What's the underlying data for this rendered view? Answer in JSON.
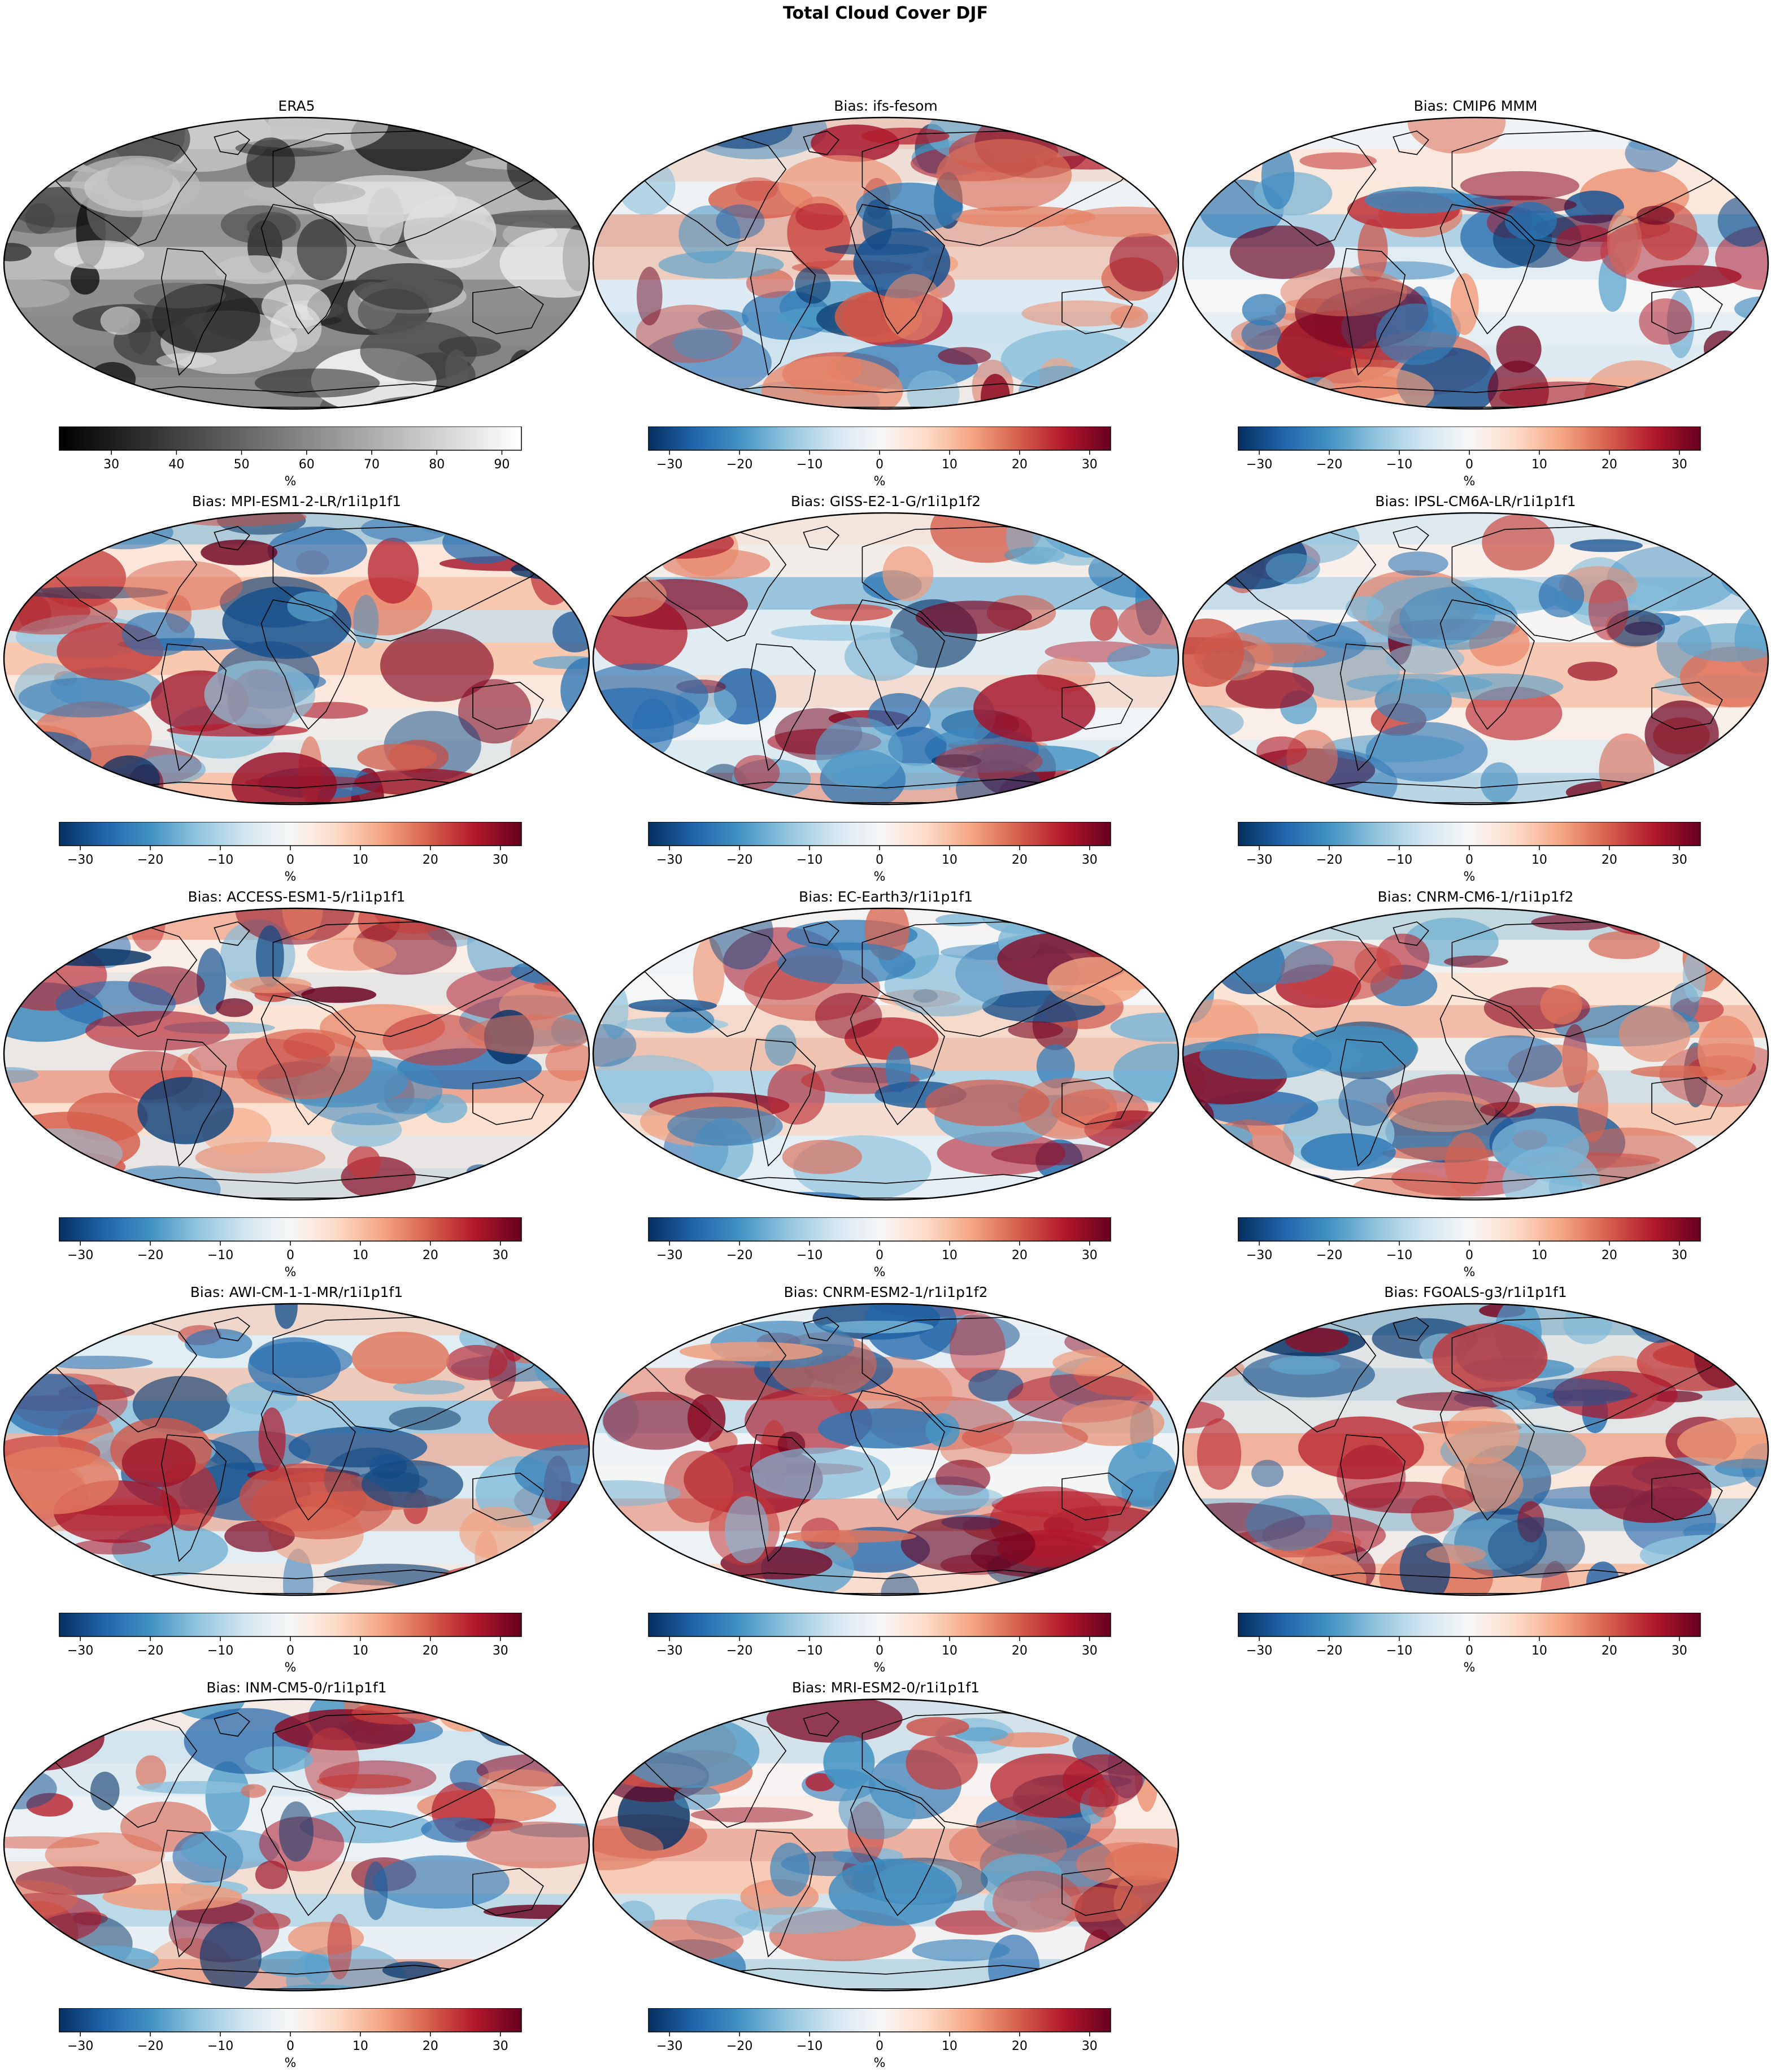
{
  "figure": {
    "title": "Total Cloud Cover DJF"
  },
  "chart_data": {
    "type": "heatmap",
    "projection": "Robinson",
    "season": "DJF",
    "variable": "Total Cloud Cover",
    "reference_colormap": "Greys_r",
    "bias_colormap": "RdBu_r",
    "colors": {
      "bias_low": "#053061",
      "bias_mid": "#f7f7f7",
      "bias_high": "#67001f",
      "ref_low": "#000000",
      "ref_high": "#ffffff",
      "coastline": "#000000"
    },
    "panels": [
      {
        "title": "ERA5",
        "kind": "reference",
        "colorbar": {
          "label": "%",
          "range": [
            22,
            93
          ],
          "ticks": [
            30,
            40,
            50,
            60,
            70,
            80,
            90
          ]
        }
      },
      {
        "title": "Bias: ifs-fesom",
        "kind": "bias",
        "colorbar": {
          "label": "%",
          "range": [
            -33,
            33
          ],
          "ticks": [
            -30,
            -20,
            -10,
            0,
            10,
            20,
            30
          ]
        }
      },
      {
        "title": "Bias: CMIP6 MMM",
        "kind": "bias",
        "colorbar": {
          "label": "%",
          "range": [
            -33,
            33
          ],
          "ticks": [
            -30,
            -20,
            -10,
            0,
            10,
            20,
            30
          ]
        }
      },
      {
        "title": "Bias: MPI-ESM1-2-LR/r1i1p1f1",
        "kind": "bias",
        "colorbar": {
          "label": "%",
          "range": [
            -33,
            33
          ],
          "ticks": [
            -30,
            -20,
            -10,
            0,
            10,
            20,
            30
          ]
        }
      },
      {
        "title": "Bias: GISS-E2-1-G/r1i1p1f2",
        "kind": "bias",
        "colorbar": {
          "label": "%",
          "range": [
            -33,
            33
          ],
          "ticks": [
            -30,
            -20,
            -10,
            0,
            10,
            20,
            30
          ]
        }
      },
      {
        "title": "Bias: IPSL-CM6A-LR/r1i1p1f1",
        "kind": "bias",
        "colorbar": {
          "label": "%",
          "range": [
            -33,
            33
          ],
          "ticks": [
            -30,
            -20,
            -10,
            0,
            10,
            20,
            30
          ]
        }
      },
      {
        "title": "Bias: ACCESS-ESM1-5/r1i1p1f1",
        "kind": "bias",
        "colorbar": {
          "label": "%",
          "range": [
            -33,
            33
          ],
          "ticks": [
            -30,
            -20,
            -10,
            0,
            10,
            20,
            30
          ]
        }
      },
      {
        "title": "Bias: EC-Earth3/r1i1p1f1",
        "kind": "bias",
        "colorbar": {
          "label": "%",
          "range": [
            -33,
            33
          ],
          "ticks": [
            -30,
            -20,
            -10,
            0,
            10,
            20,
            30
          ]
        }
      },
      {
        "title": "Bias: CNRM-CM6-1/r1i1p1f2",
        "kind": "bias",
        "colorbar": {
          "label": "%",
          "range": [
            -33,
            33
          ],
          "ticks": [
            -30,
            -20,
            -10,
            0,
            10,
            20,
            30
          ]
        }
      },
      {
        "title": "Bias: AWI-CM-1-1-MR/r1i1p1f1",
        "kind": "bias",
        "colorbar": {
          "label": "%",
          "range": [
            -33,
            33
          ],
          "ticks": [
            -30,
            -20,
            -10,
            0,
            10,
            20,
            30
          ]
        }
      },
      {
        "title": "Bias: CNRM-ESM2-1/r1i1p1f2",
        "kind": "bias",
        "colorbar": {
          "label": "%",
          "range": [
            -33,
            33
          ],
          "ticks": [
            -30,
            -20,
            -10,
            0,
            10,
            20,
            30
          ]
        }
      },
      {
        "title": "Bias: FGOALS-g3/r1i1p1f1",
        "kind": "bias",
        "colorbar": {
          "label": "%",
          "range": [
            -33,
            33
          ],
          "ticks": [
            -30,
            -20,
            -10,
            0,
            10,
            20,
            30
          ]
        }
      },
      {
        "title": "Bias: INM-CM5-0/r1i1p1f1",
        "kind": "bias",
        "colorbar": {
          "label": "%",
          "range": [
            -33,
            33
          ],
          "ticks": [
            -30,
            -20,
            -10,
            0,
            10,
            20,
            30
          ]
        }
      },
      {
        "title": "Bias: MRI-ESM2-0/r1i1p1f1",
        "kind": "bias",
        "colorbar": {
          "label": "%",
          "range": [
            -33,
            33
          ],
          "ticks": [
            -30,
            -20,
            -10,
            0,
            10,
            20,
            30
          ]
        }
      }
    ]
  }
}
